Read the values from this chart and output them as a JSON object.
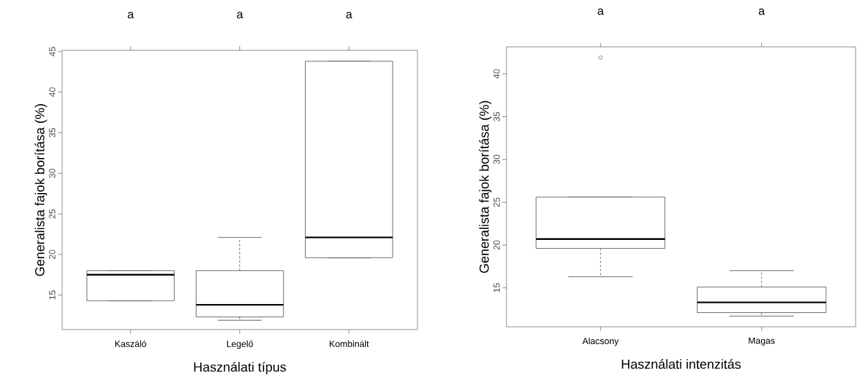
{
  "chart_data": [
    {
      "type": "box",
      "xlabel": "Használati típus",
      "ylabel": "Generalista fajok borítása (%)",
      "categories": [
        "Kaszáló",
        "Legelő",
        "Kombinált"
      ],
      "boxes": [
        {
          "low": 14.3,
          "q1": 14.3,
          "median": 17.5,
          "q3": 18.0,
          "high": 18.0
        },
        {
          "low": 11.9,
          "q1": 12.3,
          "median": 13.8,
          "q3": 18.0,
          "high": 22.1
        },
        {
          "low": 19.6,
          "q1": 19.6,
          "median": 22.1,
          "q3": 43.8,
          "high": 43.8
        }
      ],
      "ylim": [
        10.75,
        45.15
      ],
      "yticks": [
        15,
        20,
        25,
        30,
        35,
        40,
        45
      ],
      "annotations": [
        "a",
        "a",
        "a"
      ]
    },
    {
      "type": "box",
      "xlabel": "Használati intenzitás",
      "ylabel": "Generalista fajok borítása (%)",
      "categories": [
        "Alacsony",
        "Magas"
      ],
      "boxes": [
        {
          "low": 16.3,
          "q1": 19.6,
          "median": 20.7,
          "q3": 25.6,
          "high": 25.6,
          "outliers": [
            41.9
          ]
        },
        {
          "low": 11.7,
          "q1": 12.1,
          "median": 13.3,
          "q3": 15.1,
          "high": 17.0
        }
      ],
      "ylim": [
        10.45,
        43.15
      ],
      "yticks": [
        15,
        20,
        25,
        30,
        35,
        40
      ],
      "annotations": [
        "a",
        "a"
      ]
    }
  ]
}
